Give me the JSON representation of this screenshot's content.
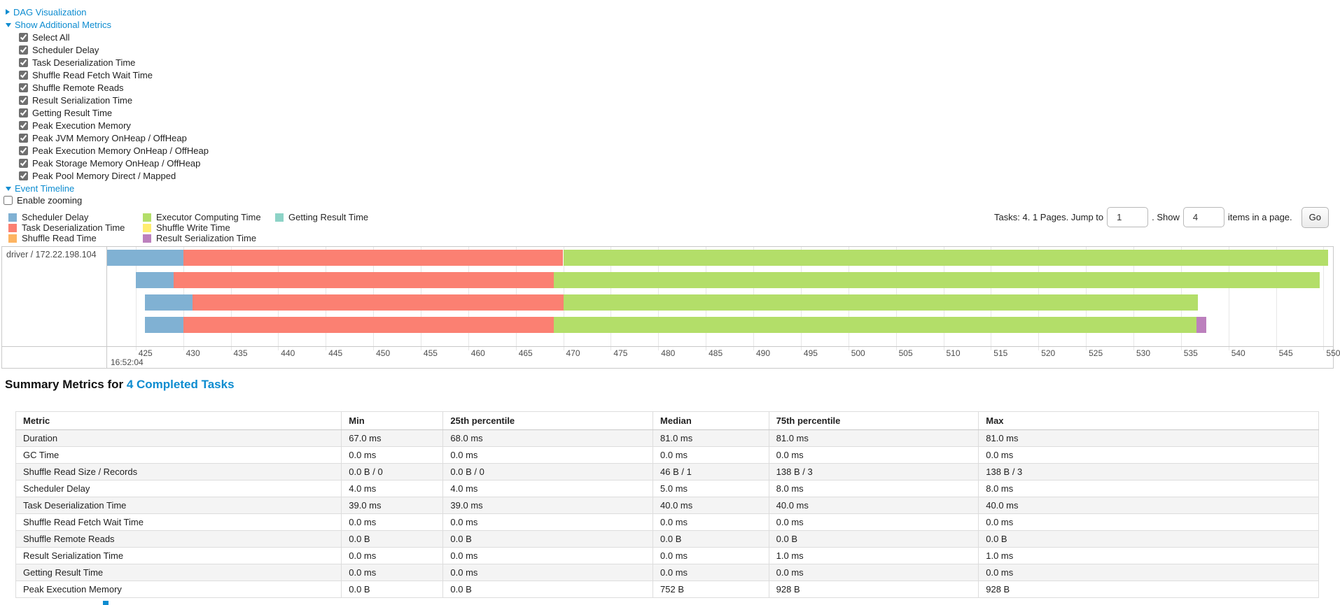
{
  "panels": {
    "dag": {
      "label": "DAG Visualization",
      "collapsed": true
    },
    "metrics": {
      "label": "Show Additional Metrics",
      "items": [
        {
          "label": "Select All",
          "checked": true
        },
        {
          "label": "Scheduler Delay",
          "checked": true
        },
        {
          "label": "Task Deserialization Time",
          "checked": true
        },
        {
          "label": "Shuffle Read Fetch Wait Time",
          "checked": true
        },
        {
          "label": "Shuffle Remote Reads",
          "checked": true
        },
        {
          "label": "Result Serialization Time",
          "checked": true
        },
        {
          "label": "Getting Result Time",
          "checked": true
        },
        {
          "label": "Peak Execution Memory",
          "checked": true
        },
        {
          "label": "Peak JVM Memory OnHeap / OffHeap",
          "checked": true
        },
        {
          "label": "Peak Execution Memory OnHeap / OffHeap",
          "checked": true
        },
        {
          "label": "Peak Storage Memory OnHeap / OffHeap",
          "checked": true
        },
        {
          "label": "Peak Pool Memory Direct / Mapped",
          "checked": true
        }
      ]
    },
    "timeline": {
      "label": "Event Timeline",
      "enable_zooming": {
        "label": "Enable zooming",
        "checked": false
      }
    }
  },
  "legend": {
    "columns": [
      [
        {
          "metric": "scheduler_delay",
          "label": "Scheduler Delay"
        },
        {
          "metric": "task_deserialization",
          "label": "Task Deserialization Time"
        },
        {
          "metric": "shuffle_read",
          "label": "Shuffle Read Time"
        }
      ],
      [
        {
          "metric": "executor_computing",
          "label": "Executor Computing Time"
        },
        {
          "metric": "shuffle_write",
          "label": "Shuffle Write Time"
        },
        {
          "metric": "result_serialization",
          "label": "Result Serialization Time"
        }
      ],
      [
        {
          "metric": "getting_result",
          "label": "Getting Result Time"
        }
      ]
    ]
  },
  "pagination": {
    "prefix": "Tasks: 4. 1 Pages. Jump to",
    "jump_value": "1",
    "mid": ". Show",
    "show_value": "4",
    "suffix": "items in a page.",
    "go_label": "Go"
  },
  "chart_data": {
    "type": "timeline",
    "group_label": "driver / 172.22.198.104",
    "axis": {
      "min_ms": 422,
      "max_ms": 551,
      "tick_start": 425,
      "tick_end": 550,
      "tick_step": 5,
      "major_label": "16:52:04"
    },
    "metric_colors": {
      "scheduler_delay": "#80B1D3",
      "task_deserialization": "#FB8072",
      "shuffle_read": "#FDB462",
      "executor_computing": "#B3DE69",
      "shuffle_write": "#FFED6F",
      "result_serialization": "#BC80BD",
      "getting_result": "#8DD3C7"
    },
    "tasks": [
      {
        "segments": [
          {
            "metric": "scheduler_delay",
            "start": 422.0,
            "end": 430.0
          },
          {
            "metric": "task_deserialization",
            "start": 430.0,
            "end": 470.0
          },
          {
            "metric": "executor_computing",
            "start": 470.0,
            "end": 550.5
          }
        ]
      },
      {
        "segments": [
          {
            "metric": "scheduler_delay",
            "start": 425.0,
            "end": 429.0
          },
          {
            "metric": "task_deserialization",
            "start": 429.0,
            "end": 469.0
          },
          {
            "metric": "executor_computing",
            "start": 469.0,
            "end": 549.6
          }
        ]
      },
      {
        "segments": [
          {
            "metric": "scheduler_delay",
            "start": 426.0,
            "end": 431.0
          },
          {
            "metric": "task_deserialization",
            "start": 431.0,
            "end": 470.0
          },
          {
            "metric": "executor_computing",
            "start": 470.0,
            "end": 536.8
          }
        ]
      },
      {
        "segments": [
          {
            "metric": "scheduler_delay",
            "start": 426.0,
            "end": 430.0
          },
          {
            "metric": "task_deserialization",
            "start": 430.0,
            "end": 469.0
          },
          {
            "metric": "executor_computing",
            "start": 469.0,
            "end": 536.6
          },
          {
            "metric": "result_serialization",
            "start": 536.6,
            "end": 537.7
          }
        ]
      }
    ]
  },
  "summary": {
    "title_prefix": "Summary Metrics for ",
    "title_link": "4 Completed Tasks",
    "table": {
      "headers": [
        "Metric",
        "Min",
        "25th percentile",
        "Median",
        "75th percentile",
        "Max"
      ],
      "col_widths_pct": [
        25.0,
        7.8,
        16.1,
        8.9,
        16.1,
        26.1
      ],
      "rows": [
        [
          "Duration",
          "67.0 ms",
          "68.0 ms",
          "81.0 ms",
          "81.0 ms",
          "81.0 ms"
        ],
        [
          "GC Time",
          "0.0 ms",
          "0.0 ms",
          "0.0 ms",
          "0.0 ms",
          "0.0 ms"
        ],
        [
          "Shuffle Read Size / Records",
          "0.0 B / 0",
          "0.0 B / 0",
          "46 B / 1",
          "138 B / 3",
          "138 B / 3"
        ],
        [
          "Scheduler Delay",
          "4.0 ms",
          "4.0 ms",
          "5.0 ms",
          "8.0 ms",
          "8.0 ms"
        ],
        [
          "Task Deserialization Time",
          "39.0 ms",
          "39.0 ms",
          "40.0 ms",
          "40.0 ms",
          "40.0 ms"
        ],
        [
          "Shuffle Read Fetch Wait Time",
          "0.0 ms",
          "0.0 ms",
          "0.0 ms",
          "0.0 ms",
          "0.0 ms"
        ],
        [
          "Shuffle Remote Reads",
          "0.0 B",
          "0.0 B",
          "0.0 B",
          "0.0 B",
          "0.0 B"
        ],
        [
          "Result Serialization Time",
          "0.0 ms",
          "0.0 ms",
          "0.0 ms",
          "1.0 ms",
          "1.0 ms"
        ],
        [
          "Getting Result Time",
          "0.0 ms",
          "0.0 ms",
          "0.0 ms",
          "0.0 ms",
          "0.0 ms"
        ],
        [
          "Peak Execution Memory",
          "0.0 B",
          "0.0 B",
          "752 B",
          "928 B",
          "928 B"
        ]
      ]
    }
  },
  "colors": {
    "link_blue": "#0d8cd0",
    "chart_border": "#c9c9c9",
    "gridline": "#e7e7e7",
    "table_stripe": "#f4f4f4"
  }
}
